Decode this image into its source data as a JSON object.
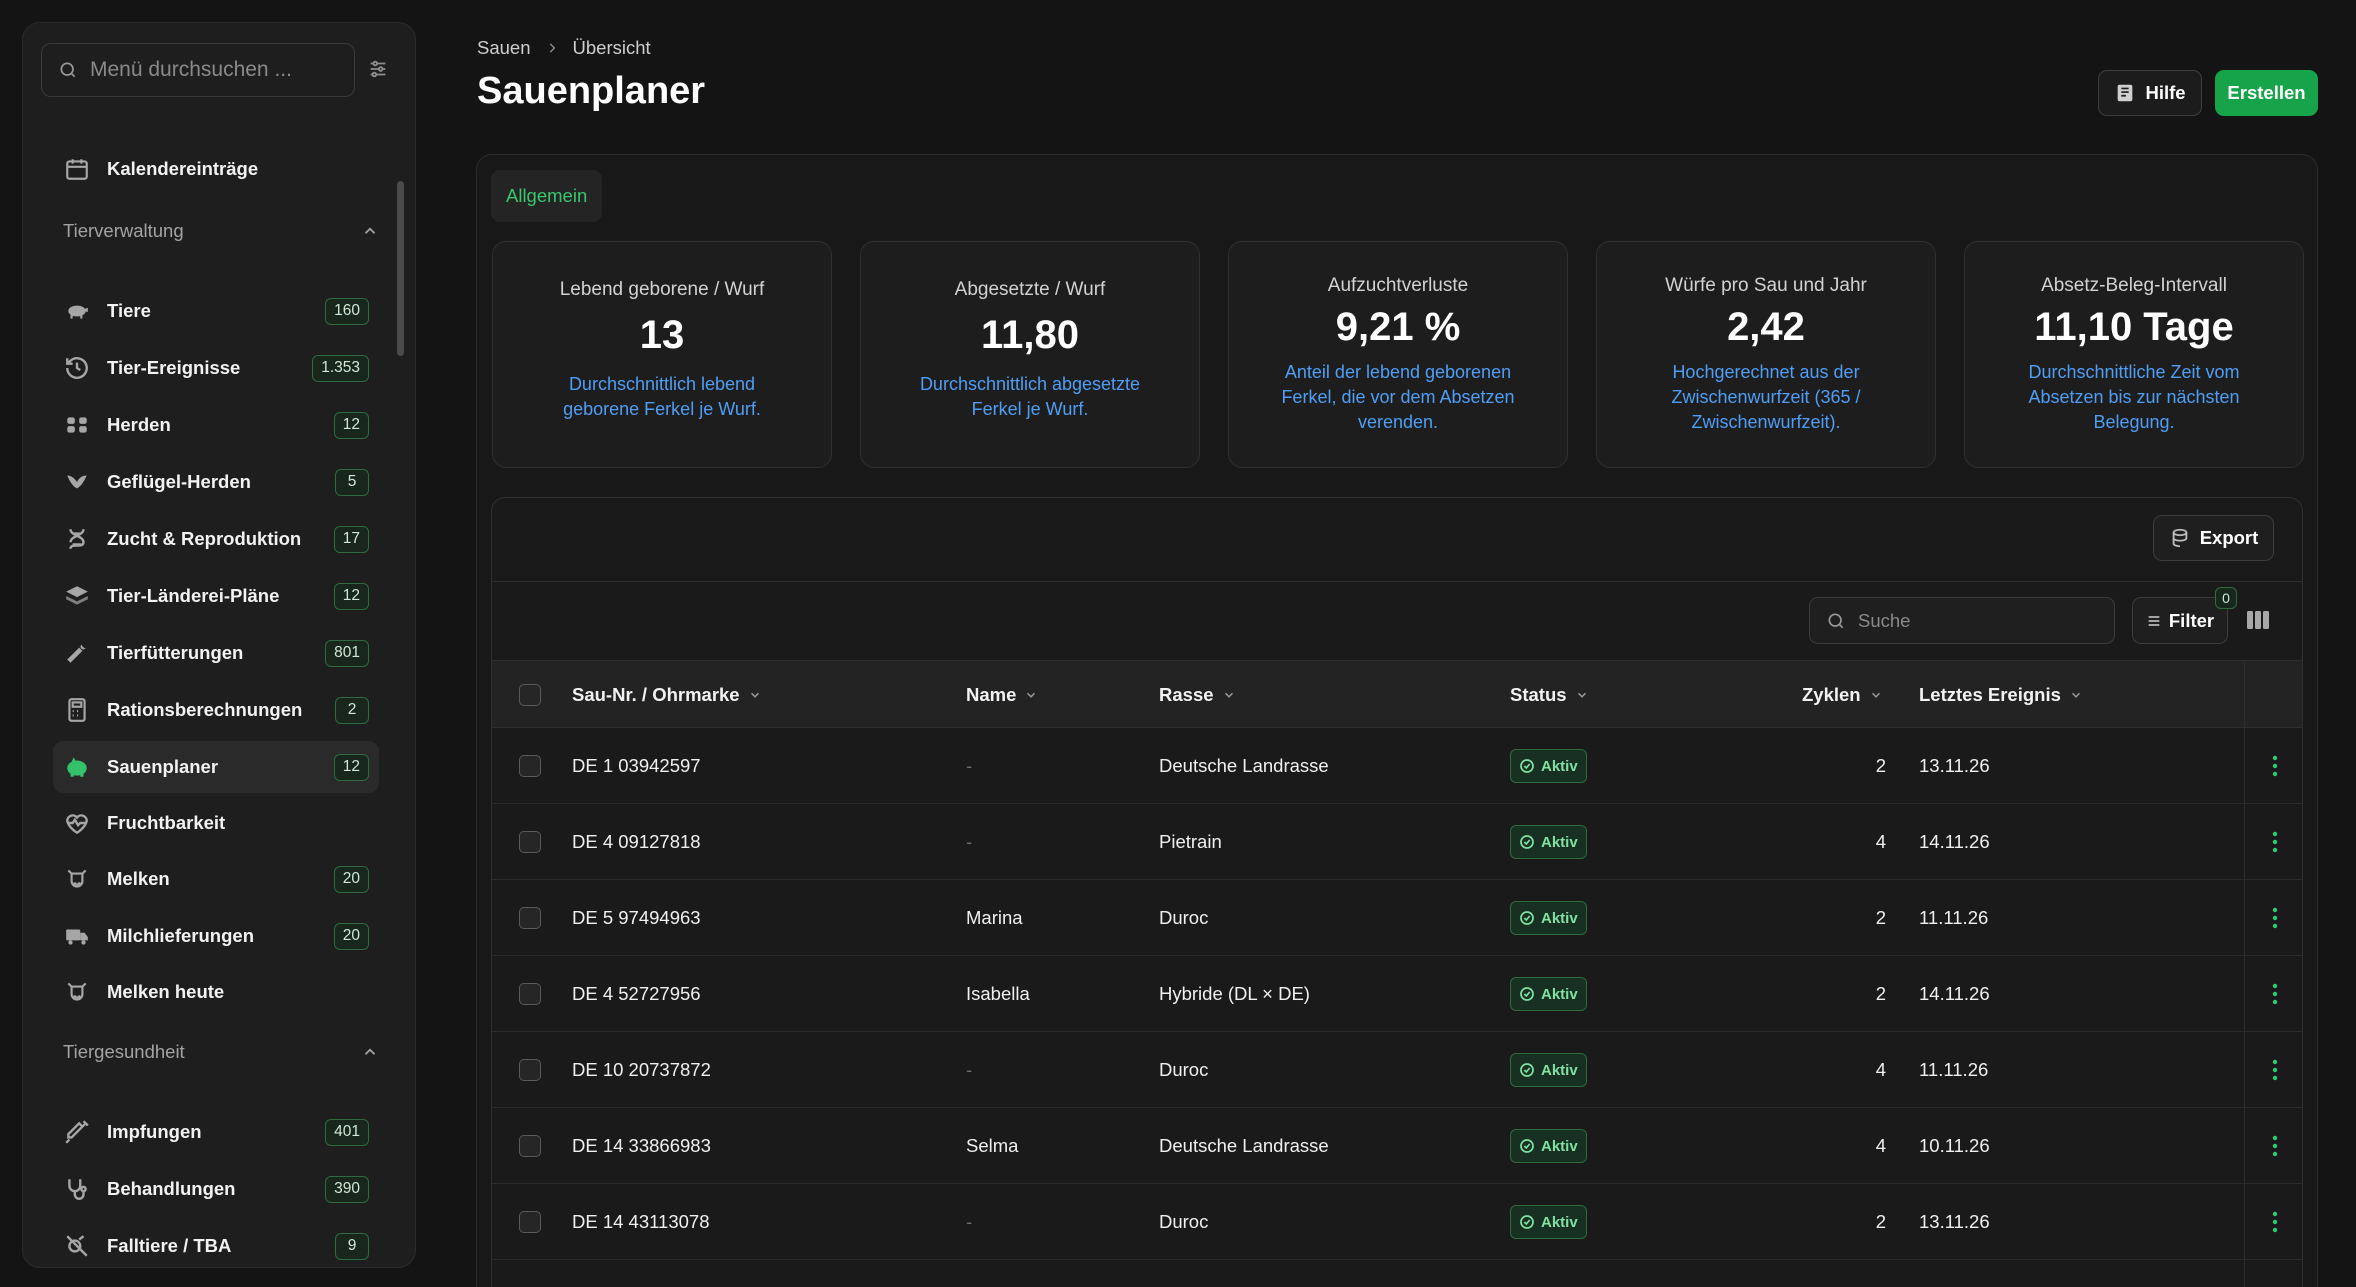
{
  "sidebar": {
    "search_placeholder": "Menü durchsuchen ...",
    "top_item": {
      "label": "Kalendereinträge",
      "icon": "calendar-icon"
    },
    "sections": [
      {
        "title": "Tierverwaltung",
        "items": [
          {
            "label": "Tiere",
            "badge": "160",
            "icon": "pig-icon"
          },
          {
            "label": "Tier-Ereignisse",
            "badge": "1.353",
            "icon": "history-icon"
          },
          {
            "label": "Herden",
            "badge": "12",
            "icon": "herd-icon"
          },
          {
            "label": "Geflügel-Herden",
            "badge": "5",
            "icon": "bird-icon"
          },
          {
            "label": "Zucht & Reproduktion",
            "badge": "17",
            "icon": "dna-icon"
          },
          {
            "label": "Tier-Länderei-Pläne",
            "badge": "12",
            "icon": "layers-icon"
          },
          {
            "label": "Tierfütterungen",
            "badge": "801",
            "icon": "carrot-icon"
          },
          {
            "label": "Rationsberechnungen",
            "badge": "2",
            "icon": "calculator-icon"
          },
          {
            "label": "Sauenplaner",
            "badge": "12",
            "icon": "piggy-icon",
            "active": true
          },
          {
            "label": "Fruchtbarkeit",
            "badge": "",
            "icon": "heart-pulse-icon"
          },
          {
            "label": "Melken",
            "badge": "20",
            "icon": "cow-icon"
          },
          {
            "label": "Milchlieferungen",
            "badge": "20",
            "icon": "truck-icon"
          },
          {
            "label": "Melken heute",
            "badge": "",
            "icon": "cow-icon"
          }
        ]
      },
      {
        "title": "Tiergesundheit",
        "items": [
          {
            "label": "Impfungen",
            "badge": "401",
            "icon": "syringe-icon"
          },
          {
            "label": "Behandlungen",
            "badge": "390",
            "icon": "stethoscope-icon"
          },
          {
            "label": "Falltiere / TBA",
            "badge": "9",
            "icon": "skull-icon"
          }
        ]
      }
    ]
  },
  "breadcrumb": {
    "parent": "Sauen",
    "current": "Übersicht"
  },
  "page_title": "Sauenplaner",
  "actions": {
    "help": "Hilfe",
    "create": "Erstellen"
  },
  "tabs": [
    "Allgemein"
  ],
  "kpis": [
    {
      "title": "Lebend geborene / Wurf",
      "value": "13",
      "desc": "Durchschnittlich lebend geborene Ferkel je Wurf."
    },
    {
      "title": "Abgesetzte / Wurf",
      "value": "11,80",
      "desc": "Durchschnittlich abgesetzte Ferkel je Wurf."
    },
    {
      "title": "Aufzuchtverluste",
      "value": "9,21 %",
      "desc": "Anteil der lebend geborenen Ferkel, die vor dem Absetzen verenden."
    },
    {
      "title": "Würfe pro Sau und Jahr",
      "value": "2,42",
      "desc": "Hochgerechnet aus der Zwischenwurfzeit (365 / Zwischenwurfzeit)."
    },
    {
      "title": "Absetz-Beleg-Intervall",
      "value": "11,10 Tage",
      "desc": "Durchschnittliche Zeit vom Absetzen bis zur nächsten Belegung."
    }
  ],
  "table": {
    "export_label": "Export",
    "search_placeholder": "Suche",
    "filter_label": "Filter",
    "filter_count": "0",
    "columns": [
      "Sau-Nr. / Ohrmarke",
      "Name",
      "Rasse",
      "Status",
      "Zyklen",
      "Letztes Ereignis"
    ],
    "rows": [
      {
        "id": "DE 1 03942597",
        "name": "-",
        "breed": "Deutsche Landrasse",
        "status": "Aktiv",
        "cycles": "2",
        "last": "13.11.26"
      },
      {
        "id": "DE 4 09127818",
        "name": "-",
        "breed": "Pietrain",
        "status": "Aktiv",
        "cycles": "4",
        "last": "14.11.26"
      },
      {
        "id": "DE 5 97494963",
        "name": "Marina",
        "breed": "Duroc",
        "status": "Aktiv",
        "cycles": "2",
        "last": "11.11.26"
      },
      {
        "id": "DE 4 52727956",
        "name": "Isabella",
        "breed": "Hybride (DL × DE)",
        "status": "Aktiv",
        "cycles": "2",
        "last": "14.11.26"
      },
      {
        "id": "DE 10 20737872",
        "name": "-",
        "breed": "Duroc",
        "status": "Aktiv",
        "cycles": "4",
        "last": "11.11.26"
      },
      {
        "id": "DE 14 33866983",
        "name": "Selma",
        "breed": "Deutsche Landrasse",
        "status": "Aktiv",
        "cycles": "4",
        "last": "10.11.26"
      },
      {
        "id": "DE 14 43113078",
        "name": "-",
        "breed": "Duroc",
        "status": "Aktiv",
        "cycles": "2",
        "last": "13.11.26"
      }
    ]
  },
  "colors": {
    "accent": "#17a34a",
    "link": "#4f9ef5",
    "background": "#141414"
  }
}
